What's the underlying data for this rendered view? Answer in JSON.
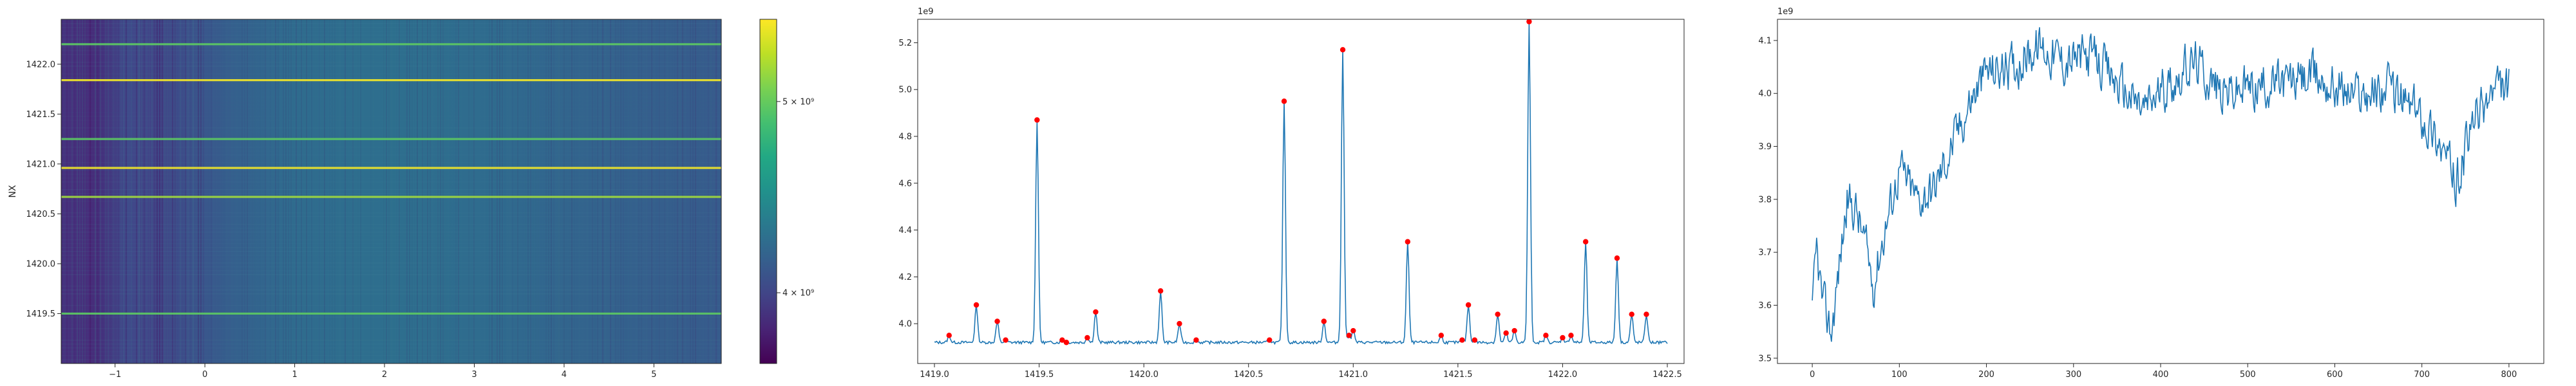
{
  "figure": {
    "background": "#ffffff",
    "axis_color": "#262626"
  },
  "chart_data": [
    {
      "type": "heatmap",
      "colormap": "viridis",
      "ylabel": "NX",
      "xlabel": "",
      "xlim": [
        -1.6,
        5.75
      ],
      "ylim": [
        1419.0,
        1422.45
      ],
      "x_ticks": [
        "−1",
        "0",
        "1",
        "2",
        "3",
        "4",
        "5"
      ],
      "x_tick_values": [
        -1,
        0,
        1,
        2,
        3,
        4,
        5
      ],
      "y_ticks": [
        "1419.5",
        "1420.0",
        "1420.5",
        "1421.0",
        "1421.5",
        "1422.0"
      ],
      "y_tick_values": [
        1419.5,
        1420.0,
        1420.5,
        1421.0,
        1421.5,
        1422.0
      ],
      "bright_rows": [
        {
          "nx": 1422.2,
          "level": 0.55
        },
        {
          "nx": 1421.84,
          "level": 1.0
        },
        {
          "nx": 1421.25,
          "level": 0.55
        },
        {
          "nx": 1420.96,
          "level": 0.95
        },
        {
          "nx": 1420.67,
          "level": 0.8
        },
        {
          "nx": 1419.5,
          "level": 0.62
        }
      ],
      "colorbar": {
        "tick_labels": [
          "4 × 10⁹",
          "5 × 10⁹"
        ],
        "tick_values": [
          4000000000,
          5000000000
        ],
        "range": [
          3630000000,
          5430000000
        ]
      }
    },
    {
      "type": "line",
      "offset_label": "1e9",
      "color": "#1f77b4",
      "marker_color": "#ff0000",
      "xlim": [
        1418.92,
        1422.58
      ],
      "ylim": [
        3.83,
        5.3
      ],
      "x_ticks": [
        "1419.0",
        "1419.5",
        "1420.0",
        "1420.5",
        "1421.0",
        "1421.5",
        "1422.0",
        "1422.5"
      ],
      "x_tick_values": [
        1419.0,
        1419.5,
        1420.0,
        1420.5,
        1421.0,
        1421.5,
        1422.0,
        1422.5
      ],
      "y_ticks": [
        "4.0",
        "4.2",
        "4.4",
        "4.6",
        "4.8",
        "5.0",
        "5.2"
      ],
      "y_tick_values": [
        4.0,
        4.2,
        4.4,
        4.6,
        4.8,
        5.0,
        5.2
      ],
      "baseline": 3.92,
      "x_start": 1419.0,
      "x_end": 1422.5,
      "peaks": [
        {
          "x": 1419.07,
          "y": 3.95
        },
        {
          "x": 1419.2,
          "y": 4.08
        },
        {
          "x": 1419.3,
          "y": 4.01
        },
        {
          "x": 1419.34,
          "y": 3.93
        },
        {
          "x": 1419.49,
          "y": 4.87
        },
        {
          "x": 1419.61,
          "y": 3.93
        },
        {
          "x": 1419.63,
          "y": 3.92
        },
        {
          "x": 1419.73,
          "y": 3.94
        },
        {
          "x": 1419.77,
          "y": 4.05
        },
        {
          "x": 1420.08,
          "y": 4.14
        },
        {
          "x": 1420.17,
          "y": 4.0
        },
        {
          "x": 1420.25,
          "y": 3.93
        },
        {
          "x": 1420.6,
          "y": 3.93
        },
        {
          "x": 1420.67,
          "y": 4.95
        },
        {
          "x": 1420.86,
          "y": 4.01
        },
        {
          "x": 1420.95,
          "y": 5.17
        },
        {
          "x": 1420.98,
          "y": 3.95
        },
        {
          "x": 1421.0,
          "y": 3.97
        },
        {
          "x": 1421.26,
          "y": 4.35
        },
        {
          "x": 1421.42,
          "y": 3.95
        },
        {
          "x": 1421.52,
          "y": 3.93
        },
        {
          "x": 1421.55,
          "y": 4.08
        },
        {
          "x": 1421.58,
          "y": 3.93
        },
        {
          "x": 1421.69,
          "y": 4.04
        },
        {
          "x": 1421.73,
          "y": 3.96
        },
        {
          "x": 1421.77,
          "y": 3.97
        },
        {
          "x": 1421.84,
          "y": 5.29
        },
        {
          "x": 1421.92,
          "y": 3.95
        },
        {
          "x": 1422.0,
          "y": 3.94
        },
        {
          "x": 1422.04,
          "y": 3.95
        },
        {
          "x": 1422.11,
          "y": 4.35
        },
        {
          "x": 1422.26,
          "y": 4.28
        },
        {
          "x": 1422.33,
          "y": 4.04
        },
        {
          "x": 1422.4,
          "y": 4.04
        }
      ]
    },
    {
      "type": "line",
      "offset_label": "1e9",
      "color": "#1f77b4",
      "xlim": [
        -40,
        840
      ],
      "ylim": [
        3.49,
        4.14
      ],
      "x_ticks": [
        "0",
        "100",
        "200",
        "300",
        "400",
        "500",
        "600",
        "700",
        "800"
      ],
      "x_tick_values": [
        0,
        100,
        200,
        300,
        400,
        500,
        600,
        700,
        800
      ],
      "y_ticks": [
        "3.5",
        "3.6",
        "3.7",
        "3.8",
        "3.9",
        "4.0",
        "4.1"
      ],
      "y_tick_values": [
        3.5,
        3.6,
        3.7,
        3.8,
        3.9,
        4.0,
        4.1
      ],
      "n_points": 801,
      "trend": [
        {
          "x": 0,
          "y": 3.58
        },
        {
          "x": 5,
          "y": 3.7
        },
        {
          "x": 12,
          "y": 3.6
        },
        {
          "x": 22,
          "y": 3.55
        },
        {
          "x": 30,
          "y": 3.66
        },
        {
          "x": 40,
          "y": 3.8
        },
        {
          "x": 50,
          "y": 3.78
        },
        {
          "x": 60,
          "y": 3.72
        },
        {
          "x": 70,
          "y": 3.64
        },
        {
          "x": 80,
          "y": 3.72
        },
        {
          "x": 100,
          "y": 3.86
        },
        {
          "x": 120,
          "y": 3.8
        },
        {
          "x": 140,
          "y": 3.82
        },
        {
          "x": 160,
          "y": 3.9
        },
        {
          "x": 180,
          "y": 3.98
        },
        {
          "x": 200,
          "y": 4.04
        },
        {
          "x": 230,
          "y": 4.05
        },
        {
          "x": 260,
          "y": 4.09
        },
        {
          "x": 290,
          "y": 4.06
        },
        {
          "x": 320,
          "y": 4.07
        },
        {
          "x": 350,
          "y": 4.02
        },
        {
          "x": 380,
          "y": 3.97
        },
        {
          "x": 410,
          "y": 4.02
        },
        {
          "x": 440,
          "y": 4.06
        },
        {
          "x": 470,
          "y": 4.0
        },
        {
          "x": 500,
          "y": 4.01
        },
        {
          "x": 540,
          "y": 4.02
        },
        {
          "x": 580,
          "y": 4.03
        },
        {
          "x": 620,
          "y": 4.0
        },
        {
          "x": 660,
          "y": 4.01
        },
        {
          "x": 700,
          "y": 3.96
        },
        {
          "x": 720,
          "y": 3.91
        },
        {
          "x": 740,
          "y": 3.83
        },
        {
          "x": 760,
          "y": 3.95
        },
        {
          "x": 780,
          "y": 4.0
        },
        {
          "x": 800,
          "y": 4.01
        }
      ]
    }
  ]
}
